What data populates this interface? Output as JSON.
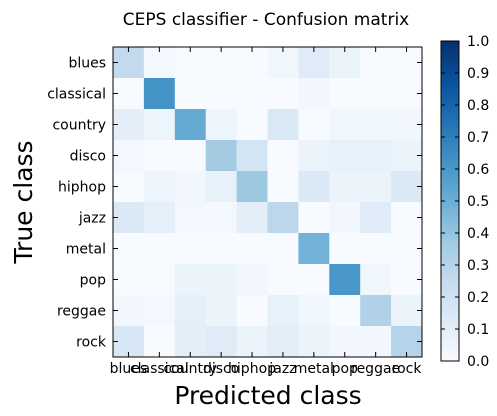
{
  "chart_data": {
    "type": "heatmap",
    "title": "CEPS classifier - Confusion matrix",
    "xlabel": "Predicted class",
    "ylabel": "True class",
    "x_categories": [
      "blues",
      "classical",
      "country",
      "disco",
      "hiphop",
      "jazz",
      "metal",
      "pop",
      "reggae",
      "rock"
    ],
    "y_categories": [
      "blues",
      "classical",
      "country",
      "disco",
      "hiphop",
      "jazz",
      "metal",
      "pop",
      "reggae",
      "rock"
    ],
    "values": [
      [
        0.26,
        0.02,
        0.0,
        0.0,
        0.0,
        0.04,
        0.12,
        0.06,
        0.0,
        0.0
      ],
      [
        0.0,
        0.62,
        0.0,
        0.0,
        0.0,
        0.0,
        0.03,
        0.0,
        0.0,
        0.0
      ],
      [
        0.1,
        0.05,
        0.52,
        0.05,
        0.0,
        0.15,
        0.0,
        0.04,
        0.04,
        0.03
      ],
      [
        0.02,
        0.0,
        0.0,
        0.36,
        0.18,
        0.0,
        0.06,
        0.08,
        0.08,
        0.06
      ],
      [
        0.0,
        0.05,
        0.03,
        0.08,
        0.38,
        0.0,
        0.14,
        0.06,
        0.06,
        0.14
      ],
      [
        0.14,
        0.09,
        0.02,
        0.02,
        0.1,
        0.28,
        0.0,
        0.03,
        0.12,
        0.0
      ],
      [
        0.0,
        0.0,
        0.0,
        0.0,
        0.0,
        0.0,
        0.48,
        0.0,
        0.0,
        0.0
      ],
      [
        0.0,
        0.0,
        0.06,
        0.06,
        0.03,
        0.0,
        0.0,
        0.6,
        0.04,
        0.0
      ],
      [
        0.03,
        0.02,
        0.09,
        0.06,
        0.0,
        0.08,
        0.04,
        0.0,
        0.32,
        0.06
      ],
      [
        0.16,
        0.0,
        0.1,
        0.12,
        0.06,
        0.1,
        0.06,
        0.03,
        0.03,
        0.3
      ]
    ],
    "colorbar": {
      "min": 0.0,
      "max": 1.0,
      "ticks": [
        "0.0",
        "0.1",
        "0.2",
        "0.3",
        "0.4",
        "0.5",
        "0.6",
        "0.7",
        "0.8",
        "0.9",
        "1.0"
      ]
    },
    "colormap": [
      "#f7fbff",
      "#deebf7",
      "#c6dbef",
      "#9ecae1",
      "#6baed6",
      "#4292c6",
      "#2171b5",
      "#08519c",
      "#08306b"
    ]
  }
}
